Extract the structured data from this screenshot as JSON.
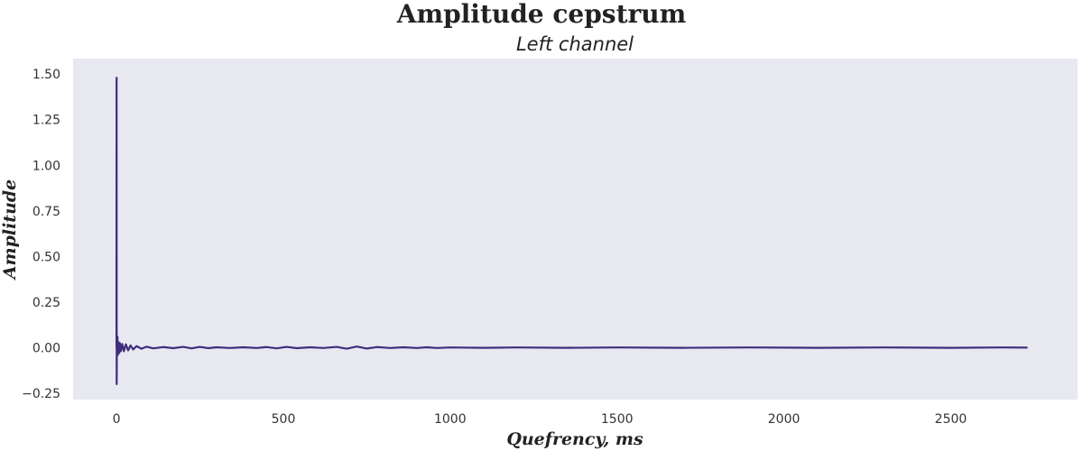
{
  "chart_data": {
    "type": "line",
    "title": "Amplitude cepstrum",
    "subtitle": "Left channel",
    "xlabel": "Quefrency, ms",
    "ylabel": "Amplitude",
    "xlim": [
      -130,
      2880
    ],
    "ylim": [
      -0.285,
      1.585
    ],
    "x_ticks": [
      0,
      500,
      1000,
      1500,
      2000,
      2500
    ],
    "x_tick_labels": [
      "0",
      "500",
      "1000",
      "1500",
      "2000",
      "2500"
    ],
    "y_ticks": [
      -0.25,
      0.0,
      0.25,
      0.5,
      0.75,
      1.0,
      1.25,
      1.5
    ],
    "y_tick_labels": [
      "−0.25",
      "0.00",
      "0.25",
      "0.50",
      "0.75",
      "1.00",
      "1.25",
      "1.50"
    ],
    "grid": false,
    "colors": {
      "line": "#3f2e7b",
      "plot_background": "#e8e8f1"
    },
    "series": [
      {
        "name": "",
        "points": [
          [
            0,
            0.0
          ],
          [
            0.3,
            1.48
          ],
          [
            0.6,
            -0.2
          ],
          [
            1.0,
            0.05
          ],
          [
            2.0,
            -0.03
          ],
          [
            3,
            0.06
          ],
          [
            4,
            -0.04
          ],
          [
            6,
            0.03
          ],
          [
            8,
            -0.03
          ],
          [
            10,
            0.025
          ],
          [
            13,
            -0.02
          ],
          [
            17,
            0.02
          ],
          [
            22,
            -0.02
          ],
          [
            28,
            0.018
          ],
          [
            35,
            -0.015
          ],
          [
            42,
            0.012
          ],
          [
            50,
            -0.01
          ],
          [
            60,
            0.008
          ],
          [
            75,
            -0.006
          ],
          [
            90,
            0.005
          ],
          [
            110,
            -0.004
          ],
          [
            140,
            0.003
          ],
          [
            170,
            -0.003
          ],
          [
            200,
            0.004
          ],
          [
            225,
            -0.004
          ],
          [
            250,
            0.004
          ],
          [
            275,
            -0.003
          ],
          [
            300,
            0.002
          ],
          [
            340,
            -0.002
          ],
          [
            380,
            0.002
          ],
          [
            420,
            -0.002
          ],
          [
            450,
            0.003
          ],
          [
            480,
            -0.004
          ],
          [
            510,
            0.004
          ],
          [
            540,
            -0.003
          ],
          [
            580,
            0.002
          ],
          [
            620,
            -0.002
          ],
          [
            660,
            0.004
          ],
          [
            690,
            -0.006
          ],
          [
            720,
            0.006
          ],
          [
            750,
            -0.005
          ],
          [
            780,
            0.003
          ],
          [
            820,
            -0.002
          ],
          [
            860,
            0.002
          ],
          [
            900,
            -0.002
          ],
          [
            930,
            0.002
          ],
          [
            960,
            -0.002
          ],
          [
            1000,
            0.001
          ],
          [
            1100,
            -0.001
          ],
          [
            1200,
            0.001
          ],
          [
            1350,
            -0.001
          ],
          [
            1500,
            0.001
          ],
          [
            1700,
            -0.001
          ],
          [
            1900,
            0.001
          ],
          [
            2100,
            -0.001
          ],
          [
            2300,
            0.001
          ],
          [
            2500,
            -0.001
          ],
          [
            2650,
            0.001
          ],
          [
            2730,
            0.0
          ]
        ]
      }
    ]
  }
}
